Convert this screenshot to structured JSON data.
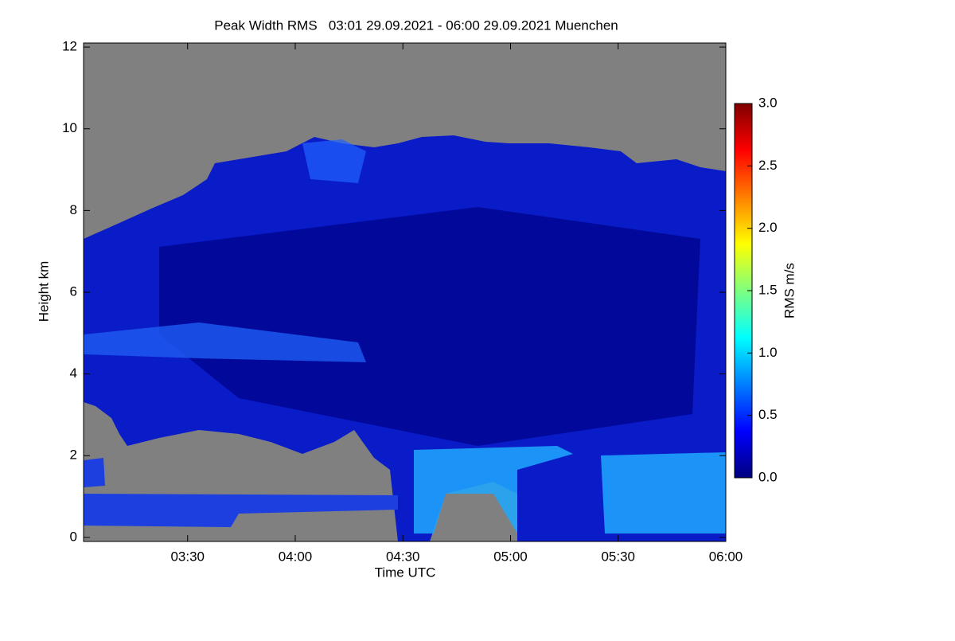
{
  "chart_data": {
    "type": "heatmap",
    "title": "Peak Width RMS   03:01 29.09.2021 - 06:00 29.09.2021 Muenchen",
    "xlabel": "Time UTC",
    "ylabel": "Height km",
    "xlim": [
      "03:01",
      "06:00"
    ],
    "xticks": [
      "03:30",
      "04:00",
      "04:30",
      "05:00",
      "05:30",
      "06:00"
    ],
    "ylim": [
      -0.1,
      12.1
    ],
    "yticks": [
      0,
      2,
      4,
      6,
      8,
      10,
      12
    ],
    "colorbar": {
      "label": "RMS m/s",
      "lim": [
        0,
        3
      ],
      "ticks": [
        {
          "value": 0,
          "label": "0.0"
        },
        {
          "value": 0.5,
          "label": "0.5"
        },
        {
          "value": 1,
          "label": "1.0"
        },
        {
          "value": 1.5,
          "label": "1.5"
        },
        {
          "value": 2,
          "label": "2.0"
        },
        {
          "value": 2.5,
          "label": "2.5"
        },
        {
          "value": 3,
          "label": "3.0"
        }
      ],
      "colormap": [
        "#00007f",
        "#0000ff",
        "#007fff",
        "#00ffff",
        "#7fff7f",
        "#ffff00",
        "#ff7f00",
        "#ff0000",
        "#7f0000"
      ]
    },
    "missing_color": "#808080"
  }
}
